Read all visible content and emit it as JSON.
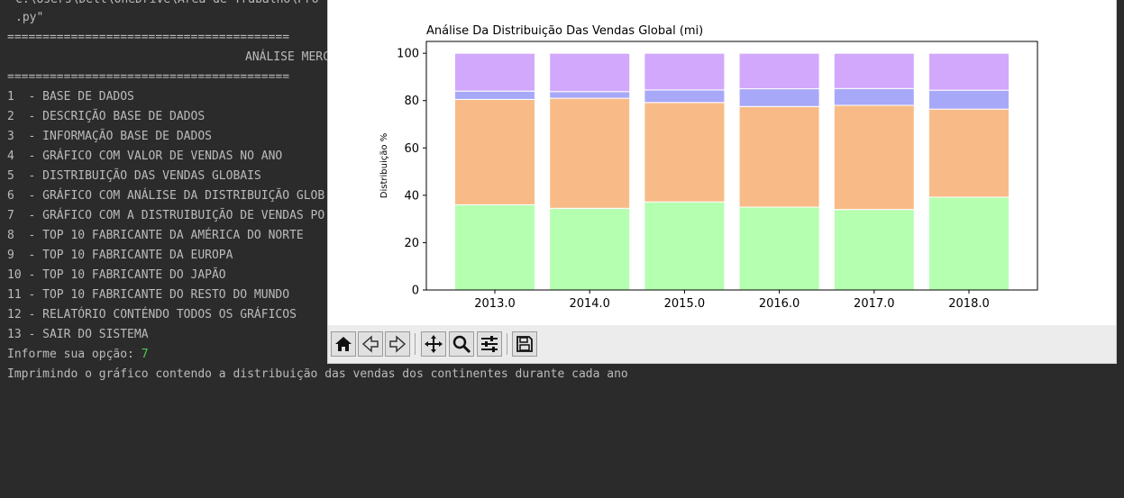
{
  "terminal": {
    "path_line": "C:\\Users\\Dell\\OneDrive\\Área de Trabalho\\Pro",
    "py_line": ".py\"",
    "separator": "========================================",
    "menu_title": "ANÁLISE MERC",
    "menu_items": [
      "1  - BASE DE DADOS",
      "2  - DESCRIÇÃO BASE DE DADOS",
      "3  - INFORMAÇÃO BASE DE DADOS",
      "4  - GRÁFICO COM VALOR DE VENDAS NO ANO",
      "5  - DISTRIBUIÇÃO DAS VENDAS GLOBAIS",
      "6  - GRÁFICO COM ANÁLISE DA DISTRIBUIÇÃO GLOB",
      "7  - GRÁFICO COM A DISTRUIBUIÇÃO DE VENDAS PO",
      "8  - TOP 10 FABRICANTE DA AMÉRICA DO NORTE",
      "9  - TOP 10 FABRICANTE DA EUROPA",
      "10 - TOP 10 FABRICANTE DO JAPÃO",
      "11 - TOP 10 FABRICANTE DO RESTO DO MUNDO",
      "12 - RELATÓRIO CONTÉNDO TODOS OS GRÁFICOS",
      "13 - SAIR DO SISTEMA"
    ],
    "prompt_label": "Informe sua opção: ",
    "prompt_value": "7",
    "message": "Imprimindo o gráfico contendo a distribuição das vendas dos continentes durante cada ano"
  },
  "plot_window": {
    "toolbar_icons": [
      "home-icon",
      "back-arrow-icon",
      "forward-arrow-icon",
      "pan-icon",
      "zoom-icon",
      "configure-subplots-icon",
      "save-icon"
    ]
  },
  "chart_data": {
    "type": "bar",
    "stacked": true,
    "title": "Análise Da Distribuição Das Vendas Global (mi)",
    "xlabel": "",
    "ylabel": "Distribuição %",
    "ylim": [
      0,
      105
    ],
    "yticks": [
      "0",
      "20",
      "40",
      "60",
      "80",
      "100"
    ],
    "categories": [
      "2013.0",
      "2014.0",
      "2015.0",
      "2016.0",
      "2017.0",
      "2018.0"
    ],
    "series": [
      {
        "color": "#b5ffb0",
        "values": [
          36,
          34.5,
          37.2,
          35,
          34,
          39.2
        ]
      },
      {
        "color": "#f8bb87",
        "values": [
          44.5,
          46.5,
          42,
          42.5,
          44,
          37.2
        ]
      },
      {
        "color": "#a8a8f8",
        "values": [
          3.5,
          2.8,
          5.3,
          7.5,
          7.1,
          8
        ]
      },
      {
        "color": "#d2a8fd",
        "values": [
          16,
          16.2,
          15.5,
          15,
          14.9,
          15.6
        ]
      }
    ],
    "grid": false,
    "legend": "none"
  }
}
